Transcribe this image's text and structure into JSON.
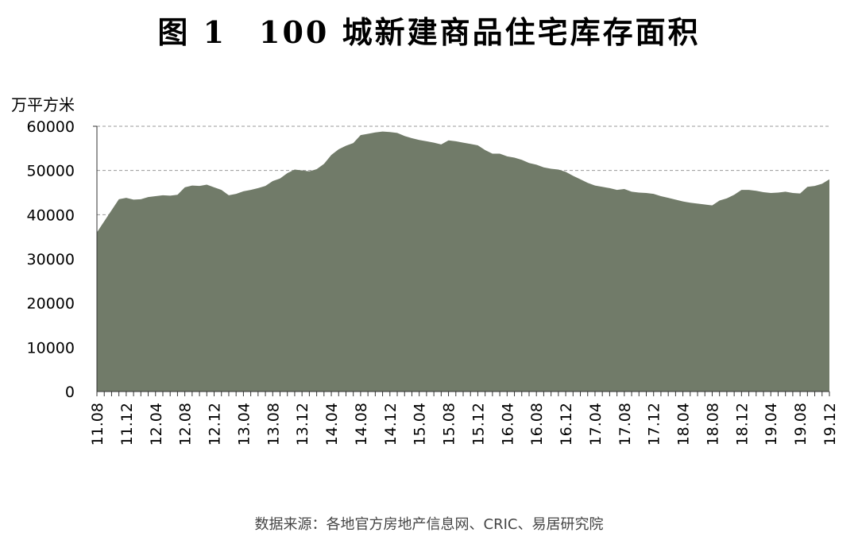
{
  "chart_data": {
    "type": "area",
    "title": "图 1　100 城新建商品住宅库存面积",
    "ylabel": "万平方米",
    "source": "数据来源：各地官方房地产信息网、CRIC、易居研究院",
    "ylim": [
      0,
      60000
    ],
    "yticks": [
      0,
      10000,
      20000,
      30000,
      40000,
      50000,
      60000
    ],
    "grid": "horizontal-dashed",
    "color": "#717b69",
    "x_tick_labels": [
      "11.08",
      "11.12",
      "12.04",
      "12.08",
      "12.12",
      "13.04",
      "13.08",
      "13.12",
      "14.04",
      "14.08",
      "14.12",
      "15.04",
      "15.08",
      "15.12",
      "16.04",
      "16.08",
      "16.12",
      "17.04",
      "17.08",
      "17.12",
      "18.04",
      "18.08",
      "18.12",
      "19.04",
      "19.08",
      "19.12"
    ],
    "start_month": "11.08",
    "values": [
      36000,
      38500,
      41000,
      43500,
      43800,
      43400,
      43500,
      44000,
      44200,
      44400,
      44300,
      44500,
      46200,
      46600,
      46500,
      46800,
      46200,
      45600,
      44400,
      44700,
      45300,
      45600,
      46000,
      46500,
      47600,
      48200,
      49400,
      50200,
      50000,
      49800,
      50300,
      51500,
      53500,
      54800,
      55600,
      56200,
      58000,
      58300,
      58600,
      58800,
      58700,
      58500,
      57800,
      57300,
      56900,
      56600,
      56300,
      55900,
      56800,
      56600,
      56300,
      56000,
      55700,
      54600,
      53800,
      53800,
      53200,
      52900,
      52400,
      51700,
      51300,
      50700,
      50400,
      50200,
      49700,
      48800,
      48000,
      47200,
      46600,
      46300,
      46000,
      45600,
      45800,
      45200,
      45000,
      44900,
      44700,
      44200,
      43800,
      43400,
      43000,
      42700,
      42500,
      42300,
      42100,
      43200,
      43700,
      44500,
      45600,
      45600,
      45400,
      45100,
      44900,
      45000,
      45200,
      44900,
      44800,
      46300,
      46500,
      47000,
      48000
    ]
  }
}
